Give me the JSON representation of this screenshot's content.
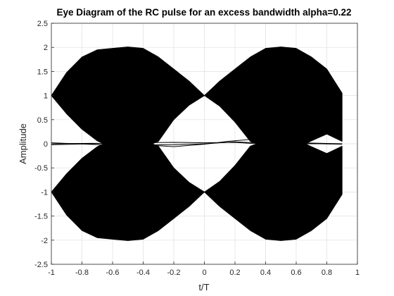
{
  "chart_data": {
    "type": "line",
    "title": "Eye Diagram of the RC pulse for an excess bandwidth alpha=0.22",
    "xlabel": "t/T",
    "ylabel": "Amplitude",
    "xlim": [
      -1,
      1
    ],
    "ylim": [
      -2.5,
      2.5
    ],
    "xticks": [
      -1,
      -0.8,
      -0.6,
      -0.4,
      -0.2,
      0,
      0.2,
      0.4,
      0.6,
      0.8,
      1
    ],
    "xtick_labels": [
      "-1",
      "-0.8",
      "-0.6",
      "-0.4",
      "-0.2",
      "0",
      "0.2",
      "0.4",
      "0.6",
      "0.8",
      "1"
    ],
    "yticks": [
      2.5,
      2,
      1.5,
      1,
      0.5,
      0,
      -0.5,
      -1,
      -1.5,
      -2,
      -2.5
    ],
    "ytick_labels": [
      "2.5",
      "2",
      "1.5",
      "1",
      "0.5",
      "0",
      "-0.5",
      "-1",
      "-1.5",
      "-2",
      "-2.5"
    ],
    "grid": true,
    "series_color": "#000000",
    "eye_envelope": {
      "x_range": [
        -1,
        0.9
      ],
      "upper_max_points": [
        [
          -1,
          1
        ],
        [
          -0.9,
          1.48
        ],
        [
          -0.8,
          1.8
        ],
        [
          -0.7,
          1.95
        ],
        [
          -0.6,
          1.98
        ],
        [
          -0.5,
          2.01
        ],
        [
          -0.4,
          1.98
        ],
        [
          -0.3,
          1.8
        ],
        [
          -0.2,
          1.55
        ],
        [
          -0.1,
          1.3
        ],
        [
          0,
          1
        ],
        [
          0.1,
          1.3
        ],
        [
          0.2,
          1.55
        ],
        [
          0.3,
          1.8
        ],
        [
          0.4,
          1.98
        ],
        [
          0.5,
          2.01
        ],
        [
          0.6,
          1.98
        ],
        [
          0.7,
          1.8
        ],
        [
          0.8,
          1.55
        ],
        [
          0.9,
          1.05
        ]
      ],
      "upper_min_points": [
        [
          -1,
          1
        ],
        [
          -0.9,
          0.62
        ],
        [
          -0.8,
          0.3
        ],
        [
          -0.7,
          0.06
        ],
        [
          -0.66,
          0
        ],
        [
          -0.6,
          -0.14
        ],
        [
          -0.5,
          -0.42
        ],
        [
          -0.4,
          -0.14
        ],
        [
          -0.34,
          0
        ],
        [
          -0.3,
          0.05
        ],
        [
          -0.2,
          0.5
        ],
        [
          -0.1,
          0.8
        ],
        [
          0,
          1
        ],
        [
          0.1,
          0.78
        ],
        [
          0.2,
          0.45
        ],
        [
          0.3,
          0.05
        ],
        [
          0.34,
          0
        ],
        [
          0.4,
          -0.14
        ],
        [
          0.5,
          -0.42
        ],
        [
          0.6,
          -0.14
        ],
        [
          0.66,
          0
        ],
        [
          0.7,
          0.06
        ],
        [
          0.8,
          0.2
        ],
        [
          0.9,
          0.05
        ]
      ]
    },
    "baseline_traces": [
      {
        "x": [
          -1,
          -0.6,
          -0.2,
          0,
          0.2,
          0.4,
          0.6,
          0.9
        ],
        "y": [
          0.02,
          -0.03,
          -0.02,
          0,
          0.04,
          0.01,
          0,
          0
        ]
      },
      {
        "x": [
          -1,
          -0.7,
          -0.4,
          -0.2,
          0,
          0.15,
          0.3,
          0.5,
          0.9
        ],
        "y": [
          0,
          0.01,
          -0.02,
          -0.06,
          -0.01,
          0.05,
          0.09,
          0.03,
          0
        ]
      },
      {
        "x": [
          -1,
          -0.5,
          -0.2,
          0,
          0.2,
          0.3,
          0.6,
          0.9
        ],
        "y": [
          -0.02,
          0.02,
          0.03,
          0.02,
          0.03,
          0.01,
          0.01,
          -0.01
        ]
      }
    ]
  }
}
